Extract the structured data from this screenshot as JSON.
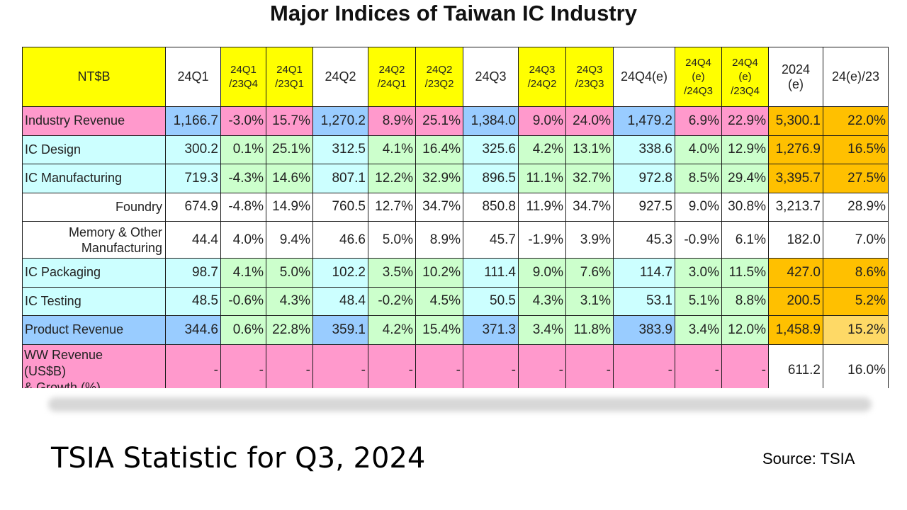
{
  "title": "Major Indices of Taiwan IC Industry",
  "footer": {
    "title": "TSIA Statistic for Q3, 2024",
    "source": "Source: TSIA"
  },
  "colors": {
    "header_yellow": "#ffff00",
    "pink": "#ff99cc",
    "cyan": "#ccffff",
    "blue": "#99ccff",
    "green": "#ccffcc",
    "orange": "#ffc000"
  },
  "table": {
    "corner": "NT$B",
    "columns": [
      "24Q1",
      "24Q1 /23Q4",
      "24Q1 /23Q1",
      "24Q2",
      "24Q2 /24Q1",
      "24Q2 /23Q2",
      "24Q3",
      "24Q3 /24Q2",
      "24Q3 /23Q3",
      "24Q4(e)",
      "24Q4 (e) /24Q3",
      "24Q4 (e) /23Q4",
      "2024 (e)",
      "24(e)/23"
    ],
    "rows": [
      {
        "label": "Industry Revenue",
        "values": [
          "1,166.7",
          "-3.0%",
          "15.7%",
          "1,270.2",
          "8.9%",
          "25.1%",
          "1,384.0",
          "9.0%",
          "24.0%",
          "1,479.2",
          "6.9%",
          "22.9%",
          "5,300.1",
          "22.0%"
        ]
      },
      {
        "label": "IC Design",
        "values": [
          "300.2",
          "0.1%",
          "25.1%",
          "312.5",
          "4.1%",
          "16.4%",
          "325.6",
          "4.2%",
          "13.1%",
          "338.6",
          "4.0%",
          "12.9%",
          "1,276.9",
          "16.5%"
        ]
      },
      {
        "label": "IC Manufacturing",
        "values": [
          "719.3",
          "-4.3%",
          "14.6%",
          "807.1",
          "12.2%",
          "32.9%",
          "896.5",
          "11.1%",
          "32.7%",
          "972.8",
          "8.5%",
          "29.4%",
          "3,395.7",
          "27.5%"
        ]
      },
      {
        "label": "Foundry",
        "values": [
          "674.9",
          "-4.8%",
          "14.9%",
          "760.5",
          "12.7%",
          "34.7%",
          "850.8",
          "11.9%",
          "34.7%",
          "927.5",
          "9.0%",
          "30.8%",
          "3,213.7",
          "28.9%"
        ]
      },
      {
        "label_line1": "Memory & Other",
        "label_line2": "Manufacturing",
        "values": [
          "44.4",
          "4.0%",
          "9.4%",
          "46.6",
          "5.0%",
          "8.9%",
          "45.7",
          "-1.9%",
          "3.9%",
          "45.3",
          "-0.9%",
          "6.1%",
          "182.0",
          "7.0%"
        ]
      },
      {
        "label": "IC Packaging",
        "values": [
          "98.7",
          "4.1%",
          "5.0%",
          "102.2",
          "3.5%",
          "10.2%",
          "111.4",
          "9.0%",
          "7.6%",
          "114.7",
          "3.0%",
          "11.5%",
          "427.0",
          "8.6%"
        ]
      },
      {
        "label": "IC Testing",
        "values": [
          "48.5",
          "-0.6%",
          "4.3%",
          "48.4",
          "-0.2%",
          "4.5%",
          "50.5",
          "4.3%",
          "3.1%",
          "53.1",
          "5.1%",
          "8.8%",
          "200.5",
          "5.2%"
        ]
      },
      {
        "label": "Product Revenue",
        "values": [
          "344.6",
          "0.6%",
          "22.8%",
          "359.1",
          "4.2%",
          "15.4%",
          "371.3",
          "3.4%",
          "11.8%",
          "383.9",
          "3.4%",
          "12.0%",
          "1,458.9",
          "15.2%"
        ]
      },
      {
        "label_line1": "WW Revenue",
        "label_line2": "(US$B)",
        "label_line3": "& Growth (%)",
        "values": [
          "-",
          "-",
          "-",
          "-",
          "-",
          "-",
          "-",
          "-",
          "-",
          "-",
          "-",
          "-",
          "611.2",
          "16.0%"
        ]
      }
    ]
  }
}
